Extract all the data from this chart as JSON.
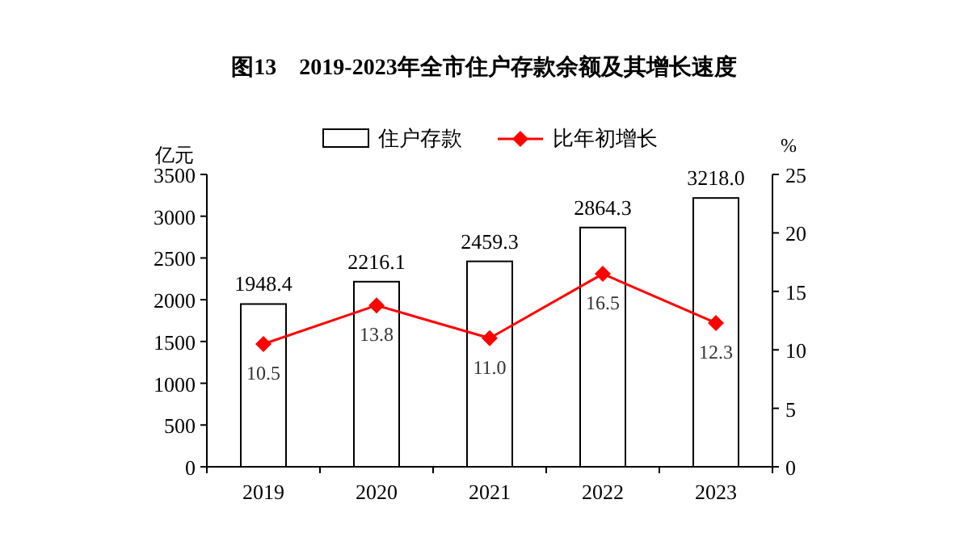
{
  "chart_data": {
    "type": "bar",
    "title": "图13　2019-2023年全市住户存款余额及其增长速度",
    "ylabel": "亿元",
    "y2label": "%",
    "categories": [
      "2019",
      "2020",
      "2021",
      "2022",
      "2023"
    ],
    "series": [
      {
        "name": "住户存款",
        "color": "#ffffff",
        "values": [
          1948.4,
          2216.1,
          2459.3,
          2864.3,
          3218.0
        ],
        "value_labels": [
          "1948.4",
          "2216.1",
          "2459.3",
          "2864.3",
          "3218.0"
        ]
      },
      {
        "name": "比年初增长",
        "type": "line",
        "axis": "y2",
        "color": "#ff0000",
        "values": [
          10.5,
          13.8,
          11.0,
          16.5,
          12.3
        ],
        "value_labels": [
          "10.5",
          "13.8",
          "11.0",
          "16.5",
          "12.3"
        ]
      }
    ],
    "ylim": [
      0,
      3500
    ],
    "yticks": [
      0,
      500,
      1000,
      1500,
      2000,
      2500,
      3000,
      3500
    ],
    "y2lim": [
      0,
      25
    ],
    "y2ticks": [
      0,
      5,
      10,
      15,
      20,
      25
    ],
    "legend": "top",
    "marker": "diamond",
    "line_style": "solid",
    "grid": false
  }
}
